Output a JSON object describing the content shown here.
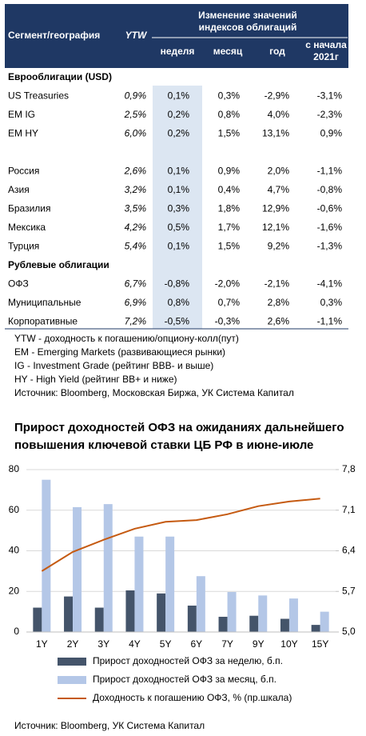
{
  "table": {
    "header": {
      "segment": "Сегмент/география",
      "ytw": "YTW",
      "group": [
        "Изменение значений",
        "индексов облигаций"
      ],
      "columns": [
        "неделя",
        "месяц",
        "год",
        [
          "с начала",
          "2021г"
        ]
      ]
    },
    "groups": [
      {
        "title": "Еврооблигации (USD)",
        "rows": [
          [
            "US Treasuries",
            "0,9%",
            "0,1%",
            "0,3%",
            "-2,9%",
            "-3,1%"
          ],
          [
            "EM IG",
            "2,5%",
            "0,2%",
            "0,8%",
            "4,0%",
            "-2,3%"
          ],
          [
            "EM HY",
            "6,0%",
            "0,2%",
            "1,5%",
            "13,1%",
            "0,9%"
          ]
        ]
      },
      {
        "rows": [
          [
            "Россия",
            "2,6%",
            "0,1%",
            "0,9%",
            "2,0%",
            "-1,1%"
          ],
          [
            "Азия",
            "3,2%",
            "0,1%",
            "0,4%",
            "4,7%",
            "-0,8%"
          ],
          [
            "Бразилия",
            "3,5%",
            "0,3%",
            "1,8%",
            "12,9%",
            "-0,6%"
          ],
          [
            "Мексика",
            "4,2%",
            "0,5%",
            "1,7%",
            "12,1%",
            "-1,6%"
          ],
          [
            "Турция",
            "5,4%",
            "0,1%",
            "1,5%",
            "9,2%",
            "-1,3%"
          ]
        ]
      },
      {
        "title": "Рублевые облигации",
        "rows": [
          [
            "ОФЗ",
            "6,7%",
            "-0,8%",
            "-2,0%",
            "-2,1%",
            "-4,1%"
          ],
          [
            "Муниципальные",
            "6,9%",
            "0,8%",
            "0,7%",
            "2,8%",
            "0,3%"
          ],
          [
            "Корпоративные",
            "7,2%",
            "-0,5%",
            "-0,3%",
            "2,6%",
            "-1,1%"
          ]
        ]
      }
    ]
  },
  "notes": [
    "YTW - доходность к погашению/опциону-колл(пут)",
    "EM - Emerging Markets (развивающиеся рынки)",
    "IG - Investment Grade (рейтинг BBB- и выше)",
    "HY - High Yield (рейтинг BB+ и ниже)",
    "Источник: Bloomberg, Московская Биржа, УК Система Капитал"
  ],
  "chart_data": {
    "type": "bar",
    "title": [
      "Прирост доходностей ОФЗ на ожиданиях дальнейшего",
      "повышения ключевой ставки ЦБ РФ в июне-июле"
    ],
    "categories": [
      "1Y",
      "2Y",
      "3Y",
      "4Y",
      "5Y",
      "6Y",
      "7Y",
      "9Y",
      "10Y",
      "15Y"
    ],
    "series": [
      {
        "name": "Прирост доходностей ОФЗ за неделю, б.п.",
        "color": "#44546a",
        "values": [
          12,
          17.5,
          12,
          20.5,
          19,
          13,
          7.5,
          8,
          6.5,
          3.5
        ]
      },
      {
        "name": "Прирост доходностей ОФЗ за месяц, б.п.",
        "color": "#b4c7e7",
        "values": [
          75,
          61.5,
          63,
          47,
          47,
          27.5,
          19.7,
          18,
          16.5,
          10
        ]
      },
      {
        "name": "Доходность к погашению ОФЗ, % (пр.шкала)",
        "color": "#c55a11",
        "type": "line",
        "axis": "y2",
        "values": [
          6.05,
          6.38,
          6.59,
          6.78,
          6.9,
          6.93,
          7.03,
          7.17,
          7.25,
          7.3
        ]
      }
    ],
    "ylim": [
      0,
      80
    ],
    "yticks": [
      0,
      20,
      40,
      60,
      80
    ],
    "y2lim": [
      5.0,
      7.8
    ],
    "y2ticks": [
      {
        "value": 5.0,
        "label": "5,0"
      },
      {
        "value": 5.7,
        "label": "5,7"
      },
      {
        "value": 6.4,
        "label": "6,4"
      },
      {
        "value": 7.1,
        "label": "7,1"
      },
      {
        "value": 7.8,
        "label": "7,8"
      }
    ],
    "grid": true,
    "source": "Источник: Bloomberg, УК Система Капитал"
  }
}
